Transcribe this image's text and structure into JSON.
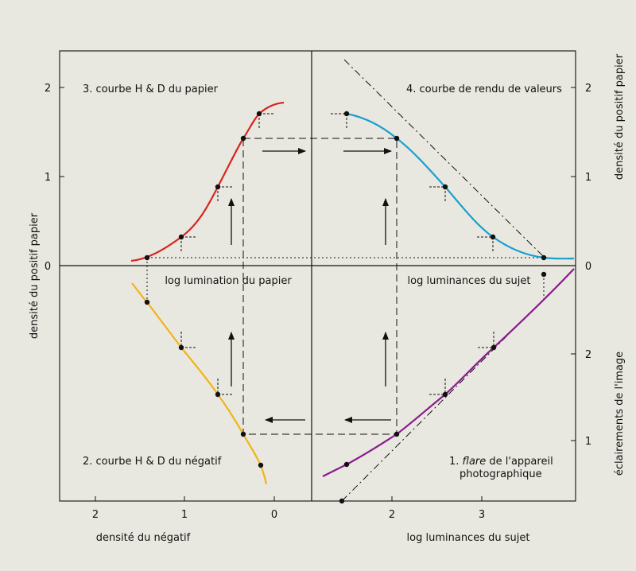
{
  "quadrants": {
    "q3_title": "3. courbe H & D du papier",
    "q4_title": "4. courbe de rendu de valeurs",
    "q2_title": "2. courbe H & D du négatif",
    "q1_title_italic": "flare",
    "q1_title_prefix": "1. ",
    "q1_title_suffix": " de l'appareil",
    "q1_title_line2": "photographique"
  },
  "axis_labels": {
    "left_vertical": "densité du positif papier",
    "right_upper_vertical": "densité du positif papier",
    "right_lower_vertical": "éclairements de l'image",
    "bottom_left": "densité du négatif",
    "bottom_right": "log luminances du sujet",
    "mid_left": "log lumination du papier",
    "mid_right": "log luminances du sujet"
  },
  "ticks": {
    "left_y": [
      "2",
      "1",
      "0"
    ],
    "right_y_upper": [
      "2",
      "1",
      "0"
    ],
    "right_y_lower": [
      "2",
      "1"
    ],
    "bottom_left_x": [
      "2",
      "1",
      "0"
    ],
    "bottom_right_x": [
      "2",
      "3"
    ]
  },
  "colors": {
    "paper_curve": "#d9241f",
    "value_curve": "#1aa0cf",
    "negative_curve": "#f0b418",
    "flare_curve": "#8a1a8e",
    "background": "#e9e8e0"
  },
  "chart_data": [
    {
      "type": "line",
      "name": "3. courbe H & D du papier",
      "x_label": "log lumination du papier",
      "y_label": "densité du positif papier",
      "points": [
        [
          -2.0,
          0.08
        ],
        [
          -1.4,
          0.1
        ],
        [
          -0.9,
          0.32
        ],
        [
          -0.45,
          0.88
        ],
        [
          -0.1,
          1.42
        ],
        [
          0.2,
          1.7
        ],
        [
          0.4,
          1.83
        ]
      ]
    },
    {
      "type": "line",
      "name": "4. courbe de rendu de valeurs",
      "x_label": "log luminances du sujet",
      "y_label": "densité du positif papier",
      "points": [
        [
          1.6,
          1.7
        ],
        [
          2.05,
          1.42
        ],
        [
          2.6,
          0.88
        ],
        [
          3.1,
          0.32
        ],
        [
          3.6,
          0.1
        ],
        [
          3.9,
          0.08
        ]
      ]
    },
    {
      "type": "line",
      "name": "2. courbe H & D du négatif",
      "x_label": "densité du négatif",
      "y_label": "log lumination du papier",
      "points": [
        [
          1.55,
          -0.2
        ],
        [
          1.4,
          -0.4
        ],
        [
          1.0,
          -0.92
        ],
        [
          0.6,
          -1.44
        ],
        [
          0.35,
          -1.92
        ],
        [
          0.15,
          -2.25
        ],
        [
          0.1,
          -2.45
        ]
      ]
    },
    {
      "type": "line",
      "name": "1. flare de l'appareil photographique",
      "x_label": "log luminances du sujet",
      "y_label": "éclairements de l'image",
      "points": [
        [
          1.2,
          -2.35
        ],
        [
          1.6,
          -2.25
        ],
        [
          2.05,
          -1.92
        ],
        [
          2.6,
          -1.44
        ],
        [
          3.1,
          -0.92
        ],
        [
          3.6,
          -0.4
        ],
        [
          4.0,
          0.0
        ]
      ]
    }
  ]
}
